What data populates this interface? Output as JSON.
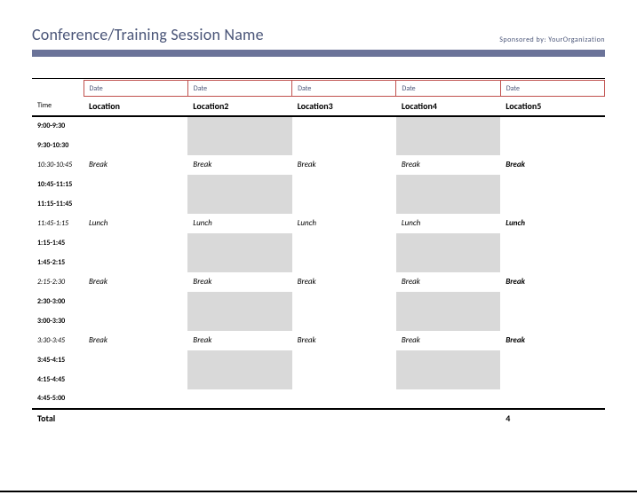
{
  "header": {
    "title": "Conference/Training Session Name",
    "sponsor": "Sponsored by: YourOrganization",
    "title_color": "#4a5578",
    "rule_color": "#6b7399"
  },
  "date_border_color": "#c0504d",
  "shaded_bg": "#d9d9d9",
  "columns": {
    "time_header": "Time",
    "dates": [
      "Date",
      "Date",
      "Date",
      "Date",
      "Date"
    ],
    "locations": [
      "Location",
      "Location2",
      "Location3",
      "Location4",
      "Location5"
    ]
  },
  "rows": [
    {
      "time": "9:00-9:30",
      "cells": [
        "",
        "",
        "",
        "",
        ""
      ],
      "shaded_cols": [
        1,
        3
      ],
      "type": "slot"
    },
    {
      "time": "9:30-10:30",
      "cells": [
        "",
        "",
        "",
        "",
        ""
      ],
      "shaded_cols": [
        1,
        3
      ],
      "type": "slot"
    },
    {
      "time": "10:30-10:45",
      "cells": [
        "Break",
        "Break",
        "Break",
        "Break",
        "Break"
      ],
      "type": "break"
    },
    {
      "time": "10:45-11:15",
      "cells": [
        "",
        "",
        "",
        "",
        ""
      ],
      "shaded_cols": [
        1,
        3
      ],
      "type": "slot"
    },
    {
      "time": "11:15-11:45",
      "cells": [
        "",
        "",
        "",
        "",
        ""
      ],
      "shaded_cols": [
        1,
        3
      ],
      "type": "slot"
    },
    {
      "time": "11:45-1:15",
      "cells": [
        "Lunch",
        "Lunch",
        "Lunch",
        "Lunch",
        "Lunch"
      ],
      "type": "break"
    },
    {
      "time": "1:15-1:45",
      "cells": [
        "",
        "",
        "",
        "",
        ""
      ],
      "shaded_cols": [
        1,
        3
      ],
      "type": "slot"
    },
    {
      "time": "1:45-2:15",
      "cells": [
        "",
        "",
        "",
        "",
        ""
      ],
      "shaded_cols": [
        1,
        3
      ],
      "type": "slot"
    },
    {
      "time": "2:15-2:30",
      "cells": [
        "Break",
        "Break",
        "Break",
        "Break",
        "Break"
      ],
      "type": "break"
    },
    {
      "time": "2:30-3:00",
      "cells": [
        "",
        "",
        "",
        "",
        ""
      ],
      "shaded_cols": [
        1,
        3
      ],
      "type": "slot"
    },
    {
      "time": "3:00-3:30",
      "cells": [
        "",
        "",
        "",
        "",
        ""
      ],
      "shaded_cols": [
        1,
        3
      ],
      "type": "slot"
    },
    {
      "time": "3:30-3:45",
      "cells": [
        "Break",
        "Break",
        "Break",
        "Break",
        "Break"
      ],
      "type": "break"
    },
    {
      "time": "3:45-4:15",
      "cells": [
        "",
        "",
        "",
        "",
        ""
      ],
      "shaded_cols": [
        1,
        3
      ],
      "type": "slot"
    },
    {
      "time": "4:15-4:45",
      "cells": [
        "",
        "",
        "",
        "",
        ""
      ],
      "shaded_cols": [
        1,
        3
      ],
      "type": "slot"
    },
    {
      "time": "4:45-5:00",
      "cells": [
        "",
        "",
        "",
        "",
        ""
      ],
      "shaded_cols": [],
      "type": "slot"
    }
  ],
  "total": {
    "label": "Total",
    "value": "4"
  }
}
